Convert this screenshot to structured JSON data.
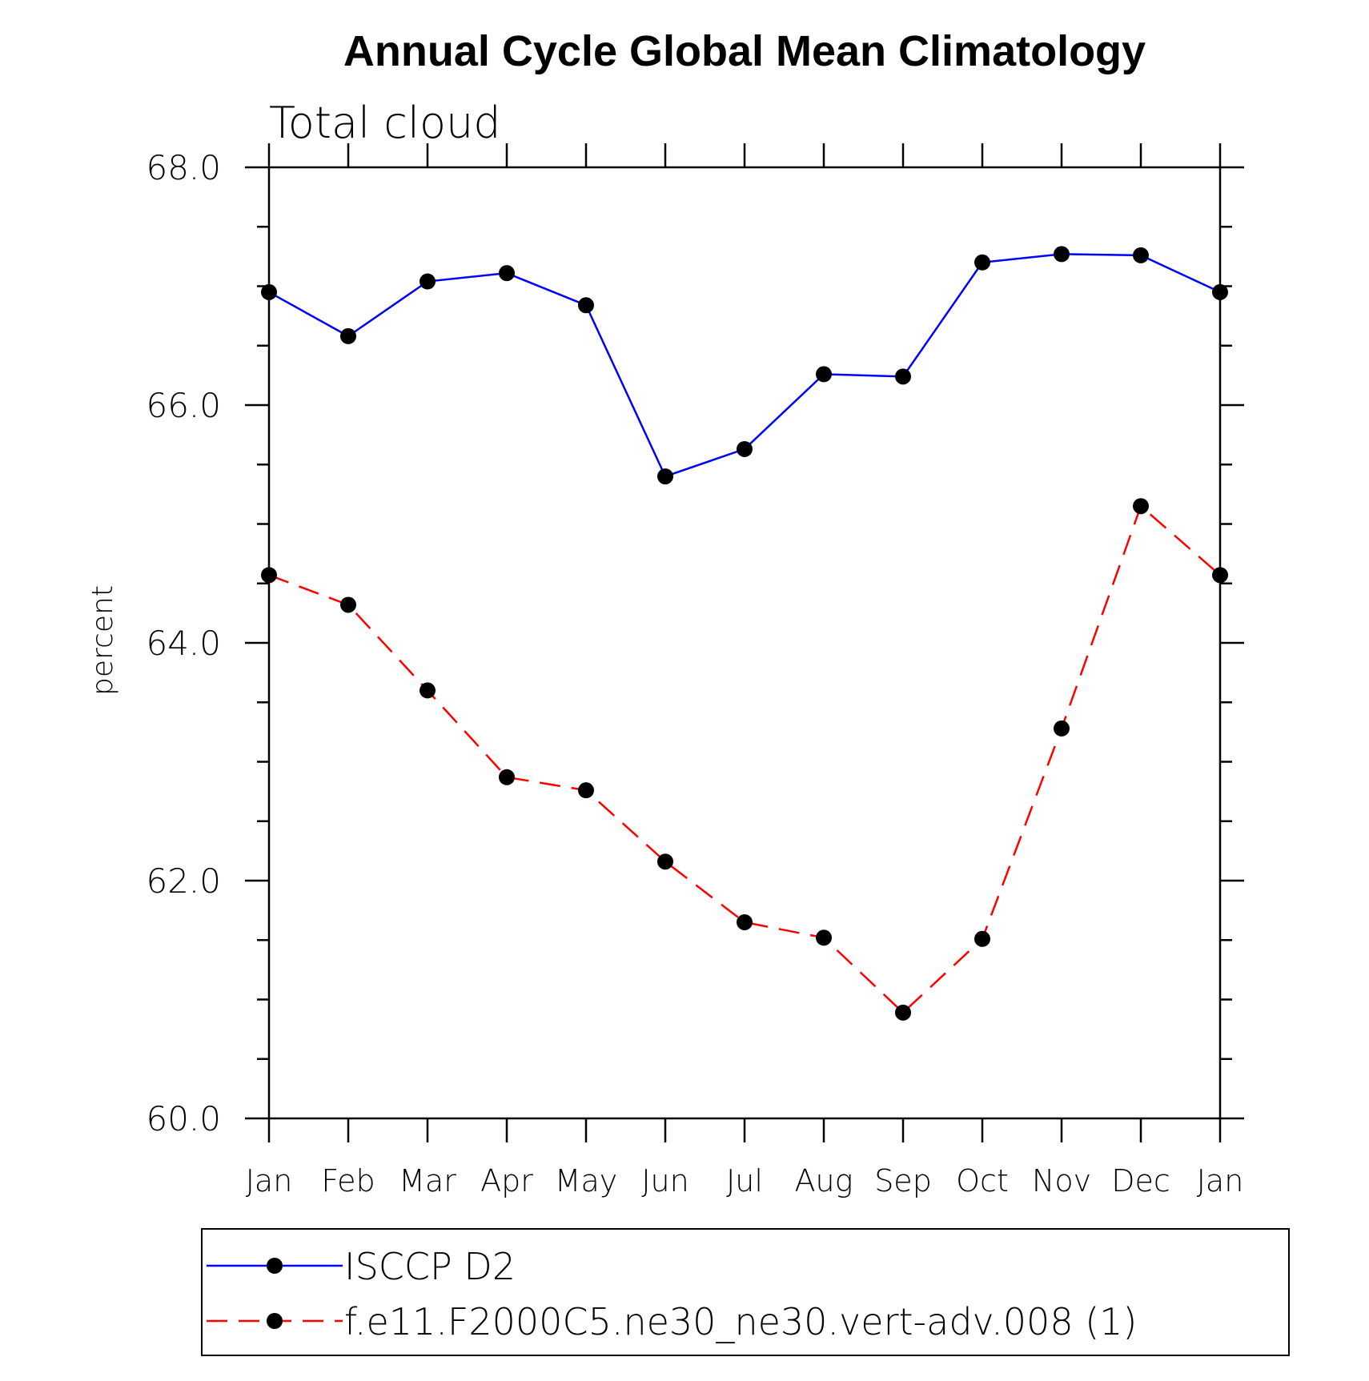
{
  "chart_data": {
    "type": "line",
    "title": "Annual Cycle Global Mean Climatology",
    "subtitle": "Total cloud",
    "xlabel": "",
    "ylabel": "percent",
    "categories": [
      "Jan",
      "Feb",
      "Mar",
      "Apr",
      "May",
      "Jun",
      "Jul",
      "Aug",
      "Sep",
      "Oct",
      "Nov",
      "Dec",
      "Jan"
    ],
    "ylim": [
      60.0,
      68.0
    ],
    "yticks": [
      "60.0",
      "62.0",
      "64.0",
      "66.0",
      "68.0"
    ],
    "grid": false,
    "legend_position": "bottom",
    "series": [
      {
        "name": "ISCCP D2",
        "color": "#0000ff",
        "style": "solid",
        "values": [
          66.95,
          66.58,
          67.04,
          67.11,
          66.84,
          65.4,
          65.63,
          66.26,
          66.24,
          67.2,
          67.27,
          67.26,
          66.95
        ]
      },
      {
        "name": "f.e11.F2000C5.ne30_ne30.vert-adv.008 (1)",
        "color": "#ff0000",
        "style": "dashed",
        "values": [
          64.57,
          64.32,
          63.6,
          62.87,
          62.76,
          62.16,
          61.65,
          61.52,
          60.89,
          61.51,
          63.28,
          65.15,
          64.57
        ]
      }
    ]
  }
}
